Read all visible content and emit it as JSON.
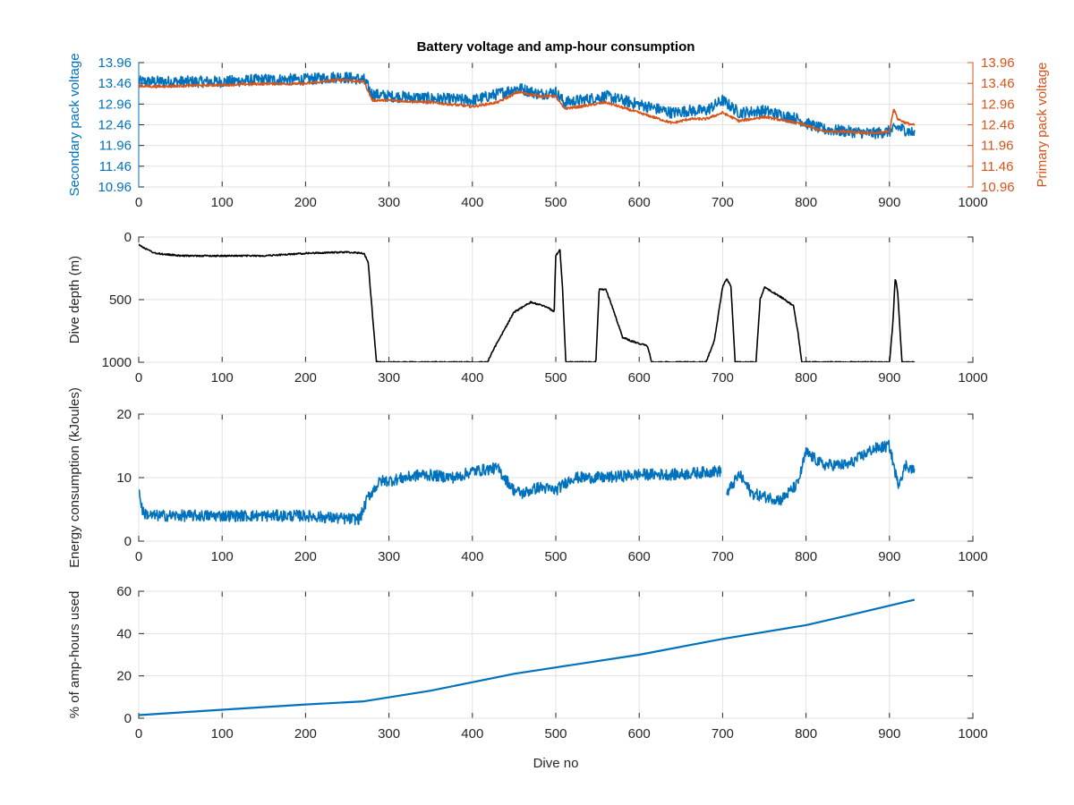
{
  "figure": {
    "title": "Battery voltage and amp-hour consumption",
    "xlabel": "Dive no"
  },
  "colors": {
    "blue": "#0072bd",
    "orange": "#d95319",
    "black": "#000000",
    "axis": "#262626"
  },
  "chart_data": [
    {
      "type": "line",
      "title": "Battery voltage and amp-hour consumption",
      "xlabel": "",
      "ylabel": "Secondary pack voltage",
      "ylabel_right": "Primary pack voltage",
      "xlim": [
        0,
        1000
      ],
      "ylim": [
        10.96,
        13.96
      ],
      "ylim_right": [
        10.96,
        13.96
      ],
      "xticks": [
        "0",
        "100",
        "200",
        "300",
        "400",
        "500",
        "600",
        "700",
        "800",
        "900",
        "1000"
      ],
      "yticks": [
        "10.96",
        "11.46",
        "11.96",
        "12.46",
        "12.96",
        "13.46",
        "13.96"
      ],
      "yticks_right": [
        "10.96",
        "11.46",
        "11.96",
        "12.46",
        "12.96",
        "13.46",
        "13.96"
      ],
      "grid": true,
      "series": [
        {
          "color": "#0072bd",
          "noise": 0.14,
          "x": [
            0,
            20,
            50,
            100,
            150,
            200,
            240,
            270,
            280,
            300,
            350,
            400,
            430,
            455,
            480,
            500,
            510,
            530,
            560,
            600,
            640,
            660,
            680,
            700,
            720,
            750,
            790,
            800,
            820,
            850,
            880,
            900,
            910,
            930
          ],
          "y": [
            13.5,
            13.5,
            13.5,
            13.5,
            13.55,
            13.55,
            13.62,
            13.55,
            13.2,
            13.15,
            13.1,
            13.05,
            13.2,
            13.35,
            13.2,
            13.25,
            13.0,
            13.05,
            13.15,
            12.95,
            12.75,
            12.8,
            12.8,
            13.05,
            12.75,
            12.8,
            12.6,
            12.5,
            12.35,
            12.3,
            12.25,
            12.3,
            12.4,
            12.25
          ]
        },
        {
          "color": "#d95319",
          "noise": 0.03,
          "axis": "right",
          "x": [
            0,
            20,
            50,
            100,
            150,
            200,
            240,
            270,
            280,
            300,
            350,
            400,
            430,
            455,
            480,
            500,
            510,
            530,
            560,
            600,
            640,
            660,
            680,
            700,
            720,
            750,
            790,
            800,
            820,
            850,
            880,
            900,
            905,
            910,
            920,
            930
          ],
          "y": [
            13.4,
            13.38,
            13.4,
            13.42,
            13.45,
            13.45,
            13.55,
            13.5,
            13.05,
            13.05,
            13.0,
            12.9,
            13.0,
            13.25,
            13.15,
            13.15,
            12.85,
            12.9,
            13.0,
            12.75,
            12.5,
            12.6,
            12.6,
            12.75,
            12.55,
            12.65,
            12.5,
            12.45,
            12.3,
            12.3,
            12.25,
            12.3,
            12.85,
            12.6,
            12.5,
            12.45
          ]
        }
      ]
    },
    {
      "type": "line",
      "ylabel": "Dive depth (m)",
      "xlim": [
        0,
        1000
      ],
      "ylim": [
        0,
        1000
      ],
      "y_reversed": true,
      "xticks": [
        "0",
        "100",
        "200",
        "300",
        "400",
        "500",
        "600",
        "700",
        "800",
        "900",
        "1000"
      ],
      "yticks": [
        "0",
        "500",
        "1000"
      ],
      "grid": true,
      "series": [
        {
          "color": "#000000",
          "noise": 6,
          "x": [
            0,
            10,
            20,
            50,
            100,
            150,
            200,
            250,
            270,
            275,
            280,
            285,
            300,
            350,
            400,
            418,
            425,
            450,
            470,
            490,
            498,
            500,
            505,
            508,
            512,
            515,
            540,
            548,
            552,
            560,
            570,
            580,
            590,
            600,
            610,
            615,
            620,
            680,
            690,
            700,
            705,
            710,
            715,
            720,
            740,
            745,
            750,
            770,
            785,
            790,
            795,
            800,
            850,
            900,
            904,
            907,
            910,
            915,
            930
          ],
          "y": [
            60,
            100,
            130,
            150,
            150,
            150,
            130,
            120,
            130,
            200,
            600,
            1000,
            1000,
            1000,
            1000,
            1000,
            900,
            600,
            520,
            560,
            600,
            150,
            100,
            400,
            1000,
            1000,
            1000,
            1000,
            420,
            420,
            600,
            800,
            830,
            850,
            870,
            1000,
            1000,
            1000,
            830,
            400,
            330,
            400,
            1000,
            1000,
            1000,
            500,
            400,
            480,
            550,
            750,
            1000,
            1000,
            1000,
            1000,
            700,
            320,
            450,
            1000,
            1000
          ]
        }
      ]
    },
    {
      "type": "line",
      "ylabel": "Energy consumption (kJoules)",
      "xlim": [
        0,
        1000
      ],
      "ylim": [
        0,
        20
      ],
      "xticks": [
        "0",
        "100",
        "200",
        "300",
        "400",
        "500",
        "600",
        "700",
        "800",
        "900",
        "1000"
      ],
      "yticks": [
        "0",
        "10",
        "20"
      ],
      "grid": true,
      "series": [
        {
          "color": "#0072bd",
          "noise": 0.9,
          "x": [
            0,
            5,
            15,
            50,
            100,
            150,
            200,
            250,
            265,
            275,
            290,
            300,
            340,
            380,
            400,
            430,
            450,
            460,
            480,
            500,
            520,
            560,
            600,
            650,
            690,
            698
          ],
          "y": [
            8,
            4.5,
            4,
            4,
            4,
            4,
            4,
            3.5,
            3.5,
            7,
            9.5,
            9.5,
            10.5,
            10,
            11,
            11.5,
            8,
            7.5,
            8.5,
            8,
            10,
            10,
            10.5,
            10.5,
            11,
            11
          ]
        },
        {
          "color": "#0072bd",
          "noise": 0.9,
          "x": [
            705,
            720,
            735,
            750,
            770,
            790,
            800,
            820,
            850,
            880,
            900,
            910,
            920,
            930
          ],
          "y": [
            7.5,
            10.5,
            7.5,
            7,
            6.5,
            9,
            14,
            12,
            12,
            14.5,
            15,
            9,
            12,
            11
          ]
        }
      ]
    },
    {
      "type": "line",
      "xlabel": "Dive no",
      "ylabel": "% of amp-hours used",
      "xlim": [
        0,
        1000
      ],
      "ylim": [
        0,
        60
      ],
      "xticks": [
        "0",
        "100",
        "200",
        "300",
        "400",
        "500",
        "600",
        "700",
        "800",
        "900",
        "1000"
      ],
      "yticks": [
        "0",
        "20",
        "40",
        "60"
      ],
      "grid": true,
      "series": [
        {
          "color": "#0072bd",
          "noise": 0,
          "x": [
            0,
            100,
            200,
            270,
            350,
            450,
            500,
            600,
            700,
            800,
            850,
            930
          ],
          "y": [
            1.5,
            4,
            6.5,
            8,
            13,
            21,
            24,
            30,
            37.5,
            44,
            48.5,
            56
          ]
        }
      ]
    }
  ]
}
